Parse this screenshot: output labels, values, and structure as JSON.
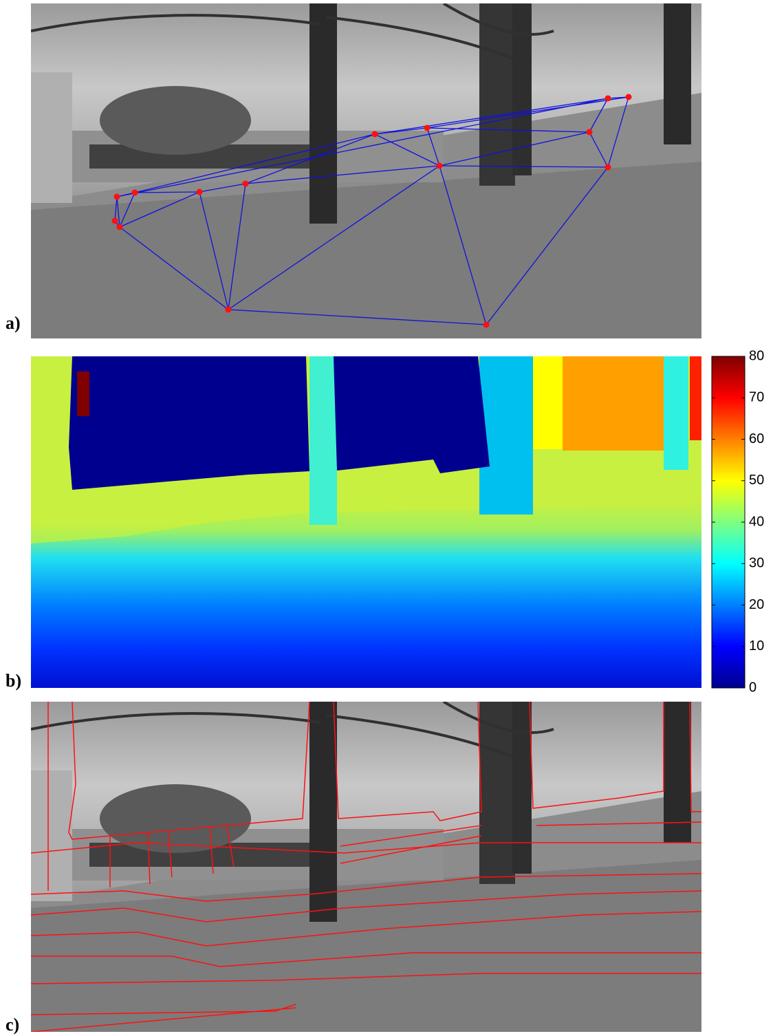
{
  "panels": [
    {
      "label": "a)"
    },
    {
      "label": "b)"
    },
    {
      "label": "c)"
    }
  ],
  "colorbar": {
    "clim": [
      0,
      80
    ],
    "ticks": [
      0,
      10,
      20,
      30,
      40,
      50,
      60,
      70,
      80
    ]
  }
}
